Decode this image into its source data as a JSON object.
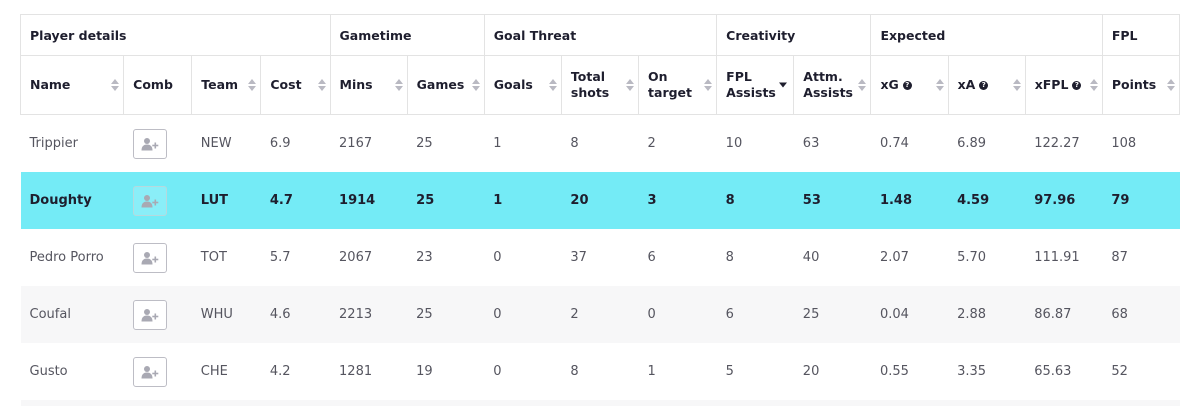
{
  "groups": [
    "Player details",
    "Gametime",
    "Goal Threat",
    "Creativity",
    "Expected",
    "FPL"
  ],
  "columns": {
    "name": "Name",
    "comb": "Comb",
    "team": "Team",
    "cost": "Cost",
    "mins": "Mins",
    "games": "Games",
    "goals": "Goals",
    "shots_1": "Total",
    "shots_2": "shots",
    "ot_1": "On",
    "ot_2": "target",
    "fa_1": "FPL",
    "fa_2": "Assists",
    "aa_1": "Attm.",
    "aa_2": "Assists",
    "xg": "xG",
    "xa": "xA",
    "xfpl": "xFPL",
    "points": "Points"
  },
  "sorted_column": "FPL Assists",
  "sort_direction": "descending",
  "icons": {
    "sort": "sort-arrows-icon",
    "info": "info-icon",
    "add_compare": "add-user-icon"
  },
  "highlight_color": "#74ebf6",
  "rows": [
    {
      "name": "Trippier",
      "team": "NEW",
      "cost": "6.9",
      "mins": "2167",
      "games": "25",
      "goals": "1",
      "shots": "8",
      "on_target": "2",
      "fpl_assists": "10",
      "attm_assists": "63",
      "xg": "0.74",
      "xa": "6.89",
      "xfpl": "122.27",
      "points": "108"
    },
    {
      "name": "Doughty",
      "team": "LUT",
      "cost": "4.7",
      "mins": "1914",
      "games": "25",
      "goals": "1",
      "shots": "20",
      "on_target": "3",
      "fpl_assists": "8",
      "attm_assists": "53",
      "xg": "1.48",
      "xa": "4.59",
      "xfpl": "97.96",
      "points": "79"
    },
    {
      "name": "Pedro Porro",
      "team": "TOT",
      "cost": "5.7",
      "mins": "2067",
      "games": "23",
      "goals": "0",
      "shots": "37",
      "on_target": "6",
      "fpl_assists": "8",
      "attm_assists": "40",
      "xg": "2.07",
      "xa": "5.70",
      "xfpl": "111.91",
      "points": "87"
    },
    {
      "name": "Coufal",
      "team": "WHU",
      "cost": "4.6",
      "mins": "2213",
      "games": "25",
      "goals": "0",
      "shots": "2",
      "on_target": "0",
      "fpl_assists": "6",
      "attm_assists": "25",
      "xg": "0.04",
      "xa": "2.88",
      "xfpl": "86.87",
      "points": "68"
    },
    {
      "name": "Gusto",
      "team": "CHE",
      "cost": "4.2",
      "mins": "1281",
      "games": "19",
      "goals": "0",
      "shots": "8",
      "on_target": "1",
      "fpl_assists": "5",
      "attm_assists": "20",
      "xg": "0.55",
      "xa": "3.35",
      "xfpl": "65.63",
      "points": "52"
    }
  ]
}
